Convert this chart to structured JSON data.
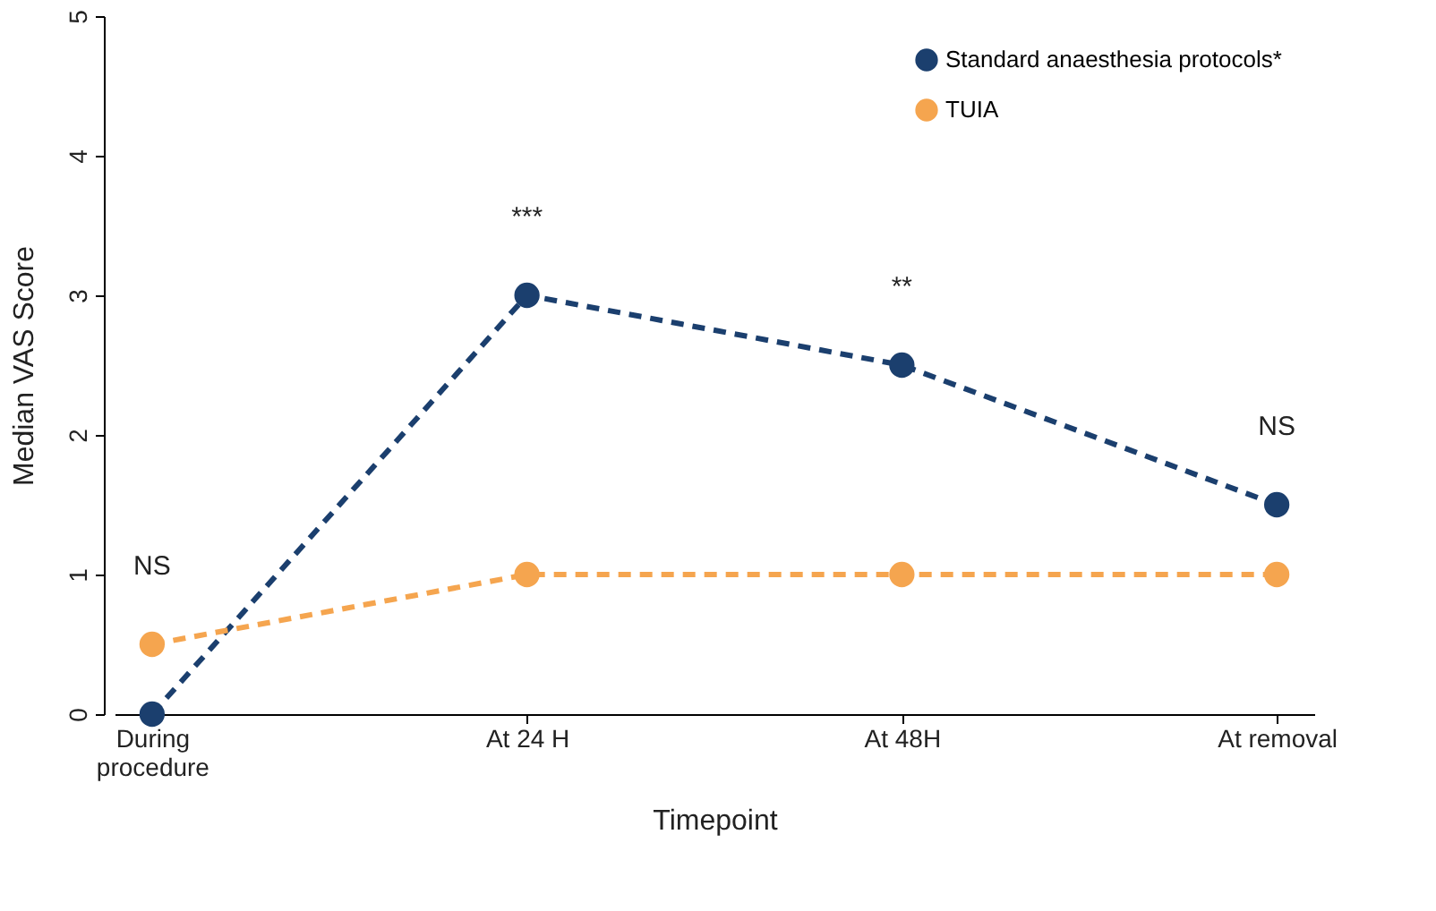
{
  "chart_data": {
    "type": "line",
    "xlabel": "Timepoint",
    "ylabel": "Median VAS Score",
    "categories": [
      "During procedure",
      "At 24 H",
      "At 48H",
      "At removal"
    ],
    "series": [
      {
        "name": "Standard anaesthesia protocols*",
        "color": "#1b3f6e",
        "values": [
          0,
          3,
          2.5,
          1.5
        ]
      },
      {
        "name": "TUIA",
        "color": "#f5a54f",
        "values": [
          0.5,
          1,
          1,
          1
        ]
      }
    ],
    "ylim": [
      0,
      5
    ],
    "yticks": [
      0,
      1,
      2,
      3,
      4,
      5
    ],
    "grid": false,
    "legend": "top right",
    "marker": "circle",
    "line_style": "dashed",
    "annotations": [
      "NS",
      "***",
      "**",
      "NS"
    ]
  }
}
